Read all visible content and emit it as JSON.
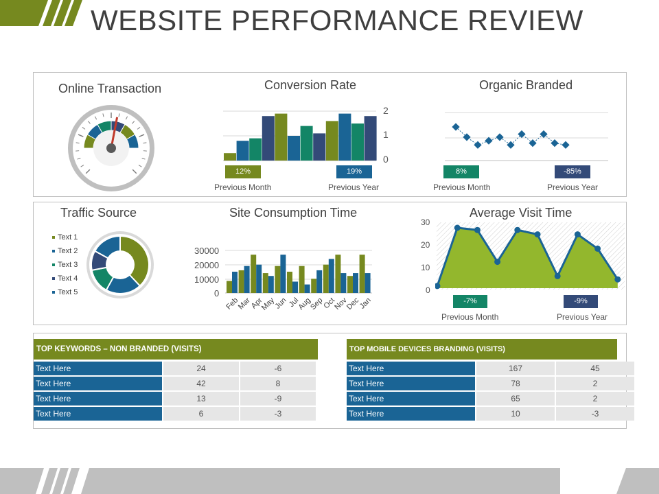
{
  "header": {
    "title": "WEBSITE PERFORMANCE REVIEW"
  },
  "colors": {
    "green": "#76891f",
    "blue": "#1a6495",
    "navy": "#334a78",
    "teal": "#138566",
    "light_green": "#93b72d",
    "gray": "#bfbfbf"
  },
  "online_transaction": {
    "title": "Online Transaction"
  },
  "conversion_rate": {
    "title": "Conversion Rate",
    "badges": [
      {
        "text": "12%",
        "color": "#76891f"
      },
      {
        "text": "19%",
        "color": "#1a6495"
      }
    ],
    "captions": [
      "Previous Month",
      "Previous Year"
    ],
    "y_ticks": [
      "2",
      "1",
      "0"
    ]
  },
  "organic_branded": {
    "title": "Organic Branded",
    "badges": [
      {
        "text": "8%",
        "color": "#138566"
      },
      {
        "text": "-85%",
        "color": "#334a78"
      }
    ],
    "captions": [
      "Previous Month",
      "Previous Year"
    ]
  },
  "traffic_source": {
    "title": "Traffic Source",
    "legend": [
      {
        "label": "Text 1",
        "color": "#76891f"
      },
      {
        "label": "Text 2",
        "color": "#1a6495"
      },
      {
        "label": "Text 3",
        "color": "#138566"
      },
      {
        "label": "Text 4",
        "color": "#334a78"
      },
      {
        "label": "Text 5",
        "color": "#1a6495"
      }
    ]
  },
  "site_consumption": {
    "title": "Site Consumption Time",
    "y_ticks": [
      "30000",
      "20000",
      "10000",
      "0"
    ]
  },
  "average_visit": {
    "title": "Average Visit Time",
    "badges": [
      {
        "text": "-7%",
        "color": "#138566"
      },
      {
        "text": "-9%",
        "color": "#334a78"
      }
    ],
    "captions": [
      "Previous Month",
      "Previous Year"
    ],
    "y_ticks": [
      "30",
      "20",
      "10",
      "0"
    ]
  },
  "keywords_table": {
    "title": "TOP KEYWORDS – NON BRANDED (VISITS)",
    "rows": [
      {
        "label": "Text Here",
        "v1": "24",
        "v2": "-6"
      },
      {
        "label": "Text Here",
        "v1": "42",
        "v2": "8"
      },
      {
        "label": "Text Here",
        "v1": "13",
        "v2": "-9"
      },
      {
        "label": "Text Here",
        "v1": "6",
        "v2": "-3"
      }
    ]
  },
  "mobile_table": {
    "title": "TOP MOBILE DEVICES BRANDING (VISITS)",
    "rows": [
      {
        "label": "Text Here",
        "v1": "167",
        "v2": "45"
      },
      {
        "label": "Text Here",
        "v1": "78",
        "v2": "2"
      },
      {
        "label": "Text Here",
        "v1": "65",
        "v2": "2"
      },
      {
        "label": "Text Here",
        "v1": "10",
        "v2": "-3"
      }
    ]
  },
  "chart_data": [
    {
      "type": "gauge",
      "title": "Online Transaction",
      "segments": [
        {
          "color": "#76891f"
        },
        {
          "color": "#1a6495"
        },
        {
          "color": "#138566"
        },
        {
          "color": "#334a78"
        },
        {
          "color": "#76891f"
        },
        {
          "color": "#1a6495"
        }
      ],
      "needle_fraction": 0.56
    },
    {
      "type": "bar",
      "title": "Conversion Rate",
      "ylim": [
        0,
        2
      ],
      "values": [
        0.3,
        0.8,
        0.9,
        1.8,
        1.9,
        1.0,
        1.4,
        1.1,
        1.6,
        1.9,
        1.5,
        1.8
      ],
      "colors": [
        "#76891f",
        "#1a6495",
        "#138566",
        "#334a78",
        "#76891f",
        "#1a6495",
        "#138566",
        "#334a78",
        "#76891f",
        "#1a6495",
        "#138566",
        "#334a78"
      ]
    },
    {
      "type": "line",
      "title": "Organic Branded",
      "values": [
        9.6,
        7.9,
        6.6,
        7.3,
        7.9,
        6.6,
        8.4,
        6.9,
        8.4,
        6.9,
        6.6
      ],
      "ylim": [
        4,
        12
      ],
      "color": "#1a6495"
    },
    {
      "type": "pie",
      "title": "Traffic Source",
      "labels": [
        "Text 1",
        "Text 2",
        "Text 3",
        "Text 4",
        "Text 5"
      ],
      "values": [
        38,
        20,
        14,
        11,
        17
      ],
      "colors": [
        "#76891f",
        "#1a6495",
        "#138566",
        "#334a78",
        "#1a6495"
      ]
    },
    {
      "type": "bar",
      "title": "Site Consumption Time",
      "categories": [
        "Feb",
        "Mar",
        "Apr",
        "May",
        "Jun",
        "Jul",
        "Aug",
        "Sep",
        "Oct",
        "Nov",
        "Dec",
        "Jan"
      ],
      "ylim": [
        0,
        30000
      ],
      "series": [
        {
          "color": "#76891f",
          "values": [
            8500,
            16000,
            27000,
            14000,
            19000,
            15000,
            19000,
            10000,
            20000,
            27000,
            12000,
            27000
          ]
        },
        {
          "color": "#1a6495",
          "values": [
            15000,
            19000,
            20000,
            12000,
            27000,
            8000,
            6000,
            16000,
            24000,
            14000,
            14000,
            14000
          ]
        }
      ]
    },
    {
      "type": "area",
      "title": "Average Visit Time",
      "ylim": [
        0,
        30
      ],
      "values": [
        1,
        27.5,
        26.5,
        12,
        26.5,
        24.5,
        5.5,
        24.5,
        18,
        4
      ],
      "color": "#93b72d"
    }
  ]
}
